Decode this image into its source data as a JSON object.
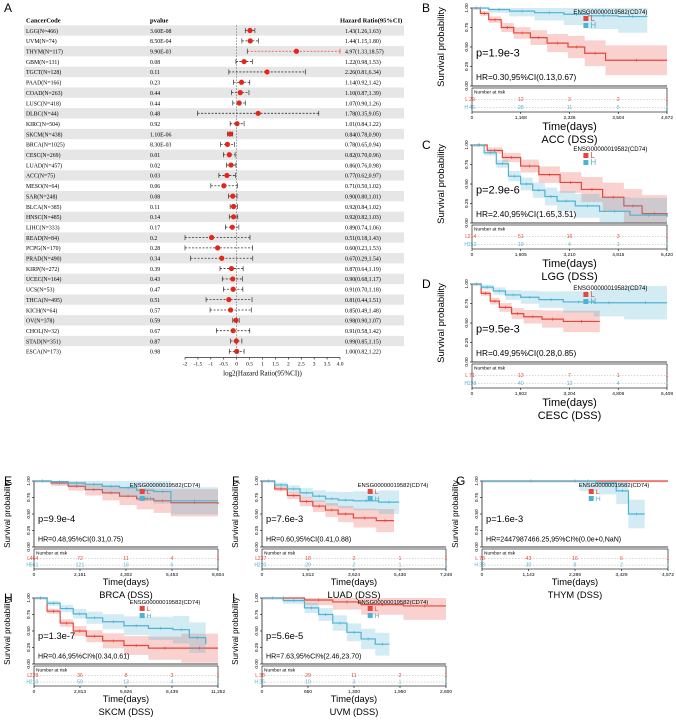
{
  "panel_letters": [
    "A",
    "B",
    "C",
    "D",
    "E",
    "F",
    "G",
    "H",
    "I"
  ],
  "forest": {
    "headers": {
      "code": "CancerCode",
      "p": "pvalue",
      "hr": "Hazard Ratio(95%CI)"
    },
    "xlabel": "log2(Hazard Ratio(95%CI))",
    "ticks": [
      -2,
      -1.5,
      -1,
      -0.5,
      0,
      0.5,
      1,
      1.5,
      2,
      2.5,
      3,
      3.5,
      4
    ],
    "tick_labels": [
      "-2",
      "-1.5",
      "-1",
      "-0.5",
      "0",
      "0.5",
      "1",
      "1.5",
      "2",
      "2.5",
      "3",
      "3.5",
      "4.0"
    ],
    "rows": [
      {
        "code": "LGG(N=466)",
        "p": "3.60E-08",
        "hr_text": "1.43(1.26,1.63)",
        "hr": 1.43,
        "lo": 1.26,
        "hi": 1.63
      },
      {
        "code": "UVM(N=74)",
        "p": "8.50E-04",
        "hr_text": "1.44(1.15,1.80)",
        "hr": 1.44,
        "lo": 1.15,
        "hi": 1.8
      },
      {
        "code": "THYM(N=117)",
        "p": "9.90E-03",
        "hr_text": "4.97(1.33,18.57)",
        "hr": 4.97,
        "lo": 1.33,
        "hi": 18.57
      },
      {
        "code": "GBM(N=131)",
        "p": "0.08",
        "hr_text": "1.22(0.98,1.53)",
        "hr": 1.22,
        "lo": 0.98,
        "hi": 1.53
      },
      {
        "code": "TGCT(N=128)",
        "p": "0.11",
        "hr_text": "2.26(0.81,6.34)",
        "hr": 2.26,
        "lo": 0.81,
        "hi": 6.34
      },
      {
        "code": "PAAD(N=166)",
        "p": "0.23",
        "hr_text": "1.14(0.92,1.42)",
        "hr": 1.14,
        "lo": 0.92,
        "hi": 1.42
      },
      {
        "code": "COAD(N=263)",
        "p": "0.44",
        "hr_text": "1.10(0.87,1.39)",
        "hr": 1.1,
        "lo": 0.87,
        "hi": 1.39
      },
      {
        "code": "LUSC(N=418)",
        "p": "0.44",
        "hr_text": "1.07(0.90,1.26)",
        "hr": 1.07,
        "lo": 0.9,
        "hi": 1.26
      },
      {
        "code": "DLBC(N=44)",
        "p": "0.48",
        "hr_text": "1.78(0.35,9.05)",
        "hr": 1.78,
        "lo": 0.35,
        "hi": 9.05
      },
      {
        "code": "KIRC(N=504)",
        "p": "0.92",
        "hr_text": "1.01(0.84,1.22)",
        "hr": 1.01,
        "lo": 0.84,
        "hi": 1.22
      },
      {
        "code": "SKCM(N=438)",
        "p": "1.10E-06",
        "hr_text": "0.84(0.78,0.90)",
        "hr": 0.84,
        "lo": 0.78,
        "hi": 0.9
      },
      {
        "code": "BRCA(N=1025)",
        "p": "8.30E-03",
        "hr_text": "0.78(0.65,0.94)",
        "hr": 0.78,
        "lo": 0.65,
        "hi": 0.94
      },
      {
        "code": "CESC(N=269)",
        "p": "0.01",
        "hr_text": "0.82(0.70,0.96)",
        "hr": 0.82,
        "lo": 0.7,
        "hi": 0.96
      },
      {
        "code": "LUAD(N=457)",
        "p": "0.02",
        "hr_text": "0.86(0.76,0.98)",
        "hr": 0.86,
        "lo": 0.76,
        "hi": 0.98
      },
      {
        "code": "ACC(N=75)",
        "p": "0.03",
        "hr_text": "0.77(0.62,0.97)",
        "hr": 0.77,
        "lo": 0.62,
        "hi": 0.97
      },
      {
        "code": "MESO(N=64)",
        "p": "0.06",
        "hr_text": "0.71(0.50,1.02)",
        "hr": 0.71,
        "lo": 0.5,
        "hi": 1.02
      },
      {
        "code": "SAR(N=248)",
        "p": "0.08",
        "hr_text": "0.90(0.80,1.01)",
        "hr": 0.9,
        "lo": 0.8,
        "hi": 1.01
      },
      {
        "code": "BLCA(N=385)",
        "p": "0.11",
        "hr_text": "0.92(0.84,1.02)",
        "hr": 0.92,
        "lo": 0.84,
        "hi": 1.02
      },
      {
        "code": "HNSC(N=485)",
        "p": "0.14",
        "hr_text": "0.92(0.82,1.03)",
        "hr": 0.92,
        "lo": 0.82,
        "hi": 1.03
      },
      {
        "code": "LIHC(N=333)",
        "p": "0.17",
        "hr_text": "0.89(0.74,1.06)",
        "hr": 0.89,
        "lo": 0.74,
        "hi": 1.06
      },
      {
        "code": "READ(N=84)",
        "p": "0.2",
        "hr_text": "0.51(0.18,1.43)",
        "hr": 0.51,
        "lo": 0.18,
        "hi": 1.43
      },
      {
        "code": "PCPG(N=170)",
        "p": "0.28",
        "hr_text": "0.60(0.23,1.53)",
        "hr": 0.6,
        "lo": 0.23,
        "hi": 1.53
      },
      {
        "code": "PRAD(N=490)",
        "p": "0.34",
        "hr_text": "0.67(0.29,1.54)",
        "hr": 0.67,
        "lo": 0.29,
        "hi": 1.54
      },
      {
        "code": "KIRP(N=272)",
        "p": "0.39",
        "hr_text": "0.87(0.64,1.19)",
        "hr": 0.87,
        "lo": 0.64,
        "hi": 1.19
      },
      {
        "code": "UCEC(N=164)",
        "p": "0.43",
        "hr_text": "0.90(0.68,1.17)",
        "hr": 0.9,
        "lo": 0.68,
        "hi": 1.17
      },
      {
        "code": "UCS(N=53)",
        "p": "0.47",
        "hr_text": "0.91(0.70,1.18)",
        "hr": 0.91,
        "lo": 0.7,
        "hi": 1.18
      },
      {
        "code": "THCA(N=495)",
        "p": "0.51",
        "hr_text": "0.81(0.44,1.51)",
        "hr": 0.81,
        "lo": 0.44,
        "hi": 1.51
      },
      {
        "code": "KICH(N=64)",
        "p": "0.57",
        "hr_text": "0.85(0.49,1.48)",
        "hr": 0.85,
        "lo": 0.49,
        "hi": 1.48
      },
      {
        "code": "OV(N=378)",
        "p": "0.59",
        "hr_text": "0.98(0.90,1.07)",
        "hr": 0.98,
        "lo": 0.9,
        "hi": 1.07
      },
      {
        "code": "CHOL(N=32)",
        "p": "0.67",
        "hr_text": "0.91(0.58,1.42)",
        "hr": 0.91,
        "lo": 0.58,
        "hi": 1.42
      },
      {
        "code": "STAD(N=351)",
        "p": "0.87",
        "hr_text": "0.99(0.85,1.15)",
        "hr": 0.99,
        "lo": 0.85,
        "hi": 1.15
      },
      {
        "code": "ESCA(N=173)",
        "p": "0.98",
        "hr_text": "1.00(0.82,1.22)",
        "hr": 1.0,
        "lo": 0.82,
        "hi": 1.22
      }
    ]
  },
  "km_common": {
    "gene_label": "ENSG00000019582(CD74)",
    "legend": [
      "L",
      "H"
    ],
    "ylabel": "Survival probability",
    "yticks": [
      "0.00",
      "0.25",
      "0.50",
      "0.75",
      "1.00"
    ],
    "risk_title": "Number at risk",
    "risk_groups": [
      "L",
      "H"
    ],
    "xlabel": "Time(days)",
    "colors": {
      "L": "#e8463a",
      "H": "#4eb3d3"
    }
  },
  "km_panels": [
    {
      "letter": "B",
      "cancer": "ACC (DSS)",
      "p": "p=1.9e-3",
      "hr": "HR=0.30,95%CI(0.13,0.67)",
      "xticks": [
        "0",
        "1,168",
        "2,336",
        "3,504",
        "4,672"
      ],
      "risk_L": [
        "29",
        "12",
        "3",
        "2",
        "1"
      ],
      "risk_H": [
        "46",
        "28",
        "11",
        "5",
        "1"
      ],
      "L": [
        [
          0,
          1
        ],
        [
          200,
          0.93
        ],
        [
          400,
          0.85
        ],
        [
          700,
          0.75
        ],
        [
          1000,
          0.68
        ],
        [
          1400,
          0.62
        ],
        [
          1800,
          0.55
        ],
        [
          2300,
          0.5
        ],
        [
          2700,
          0.42
        ],
        [
          3200,
          0.33
        ],
        [
          4672,
          0.33
        ]
      ],
      "H": [
        [
          0,
          1
        ],
        [
          400,
          0.98
        ],
        [
          900,
          0.96
        ],
        [
          1500,
          0.94
        ],
        [
          2200,
          0.92
        ],
        [
          2800,
          0.9
        ],
        [
          3500,
          0.89
        ],
        [
          4200,
          0.89
        ]
      ]
    },
    {
      "letter": "C",
      "cancer": "LGG (DSS)",
      "p": "p=2.9e-6",
      "hr": "HR=2.40,95%CI(1.65,3.51)",
      "xticks": [
        "0",
        "1,605",
        "3,210",
        "4,815",
        "6,420"
      ],
      "risk_L": [
        "214",
        "51",
        "16",
        "3",
        "1"
      ],
      "risk_H": [
        "152",
        "19",
        "4",
        "1",
        "1"
      ],
      "L": [
        [
          0,
          1
        ],
        [
          500,
          0.93
        ],
        [
          1000,
          0.84
        ],
        [
          1600,
          0.73
        ],
        [
          2200,
          0.62
        ],
        [
          2900,
          0.52
        ],
        [
          3600,
          0.43
        ],
        [
          4300,
          0.33
        ],
        [
          5000,
          0.22
        ],
        [
          5600,
          0.12
        ],
        [
          6420,
          0.08
        ]
      ],
      "H": [
        [
          0,
          1
        ],
        [
          400,
          0.9
        ],
        [
          800,
          0.76
        ],
        [
          1200,
          0.6
        ],
        [
          1600,
          0.5
        ],
        [
          2000,
          0.42
        ],
        [
          2400,
          0.34
        ],
        [
          2800,
          0.28
        ],
        [
          3400,
          0.22
        ],
        [
          4200,
          0.15
        ],
        [
          5200,
          0.1
        ],
        [
          6420,
          0.08
        ]
      ]
    },
    {
      "letter": "D",
      "cancer": "CESC (DSS)",
      "p": "p=9.5e-3",
      "hr": "HR=0.49,95%CI(0.28,0.85)",
      "xticks": [
        "0",
        "1,602",
        "3,204",
        "4,806",
        "6,408"
      ],
      "risk_L": [
        "71",
        "13",
        "7",
        "1",
        "1"
      ],
      "risk_H": [
        "198",
        "40",
        "12",
        "4",
        "1"
      ],
      "L": [
        [
          0,
          1
        ],
        [
          300,
          0.88
        ],
        [
          600,
          0.78
        ],
        [
          900,
          0.7
        ],
        [
          1300,
          0.62
        ],
        [
          1700,
          0.58
        ],
        [
          2300,
          0.55
        ],
        [
          3000,
          0.52
        ],
        [
          4200,
          0.52
        ]
      ],
      "H": [
        [
          0,
          1
        ],
        [
          300,
          0.96
        ],
        [
          700,
          0.91
        ],
        [
          1100,
          0.86
        ],
        [
          1600,
          0.83
        ],
        [
          2200,
          0.8
        ],
        [
          3000,
          0.77
        ],
        [
          4000,
          0.76
        ],
        [
          5000,
          0.76
        ],
        [
          6408,
          0.76
        ]
      ]
    },
    {
      "letter": "E",
      "cancer": "BRCA (DSS)",
      "p": "p=9.9e-4",
      "hr": "HR=0.48,95%CI(0.31,0.75)",
      "xticks": [
        "0",
        "2,151",
        "4,302",
        "6,453",
        "8,604"
      ],
      "risk_L": [
        "464",
        "72",
        "11",
        "4",
        "1"
      ],
      "risk_H": [
        "561",
        "121",
        "16",
        "6",
        "1"
      ],
      "L": [
        [
          0,
          1
        ],
        [
          800,
          0.97
        ],
        [
          1600,
          0.92
        ],
        [
          2400,
          0.87
        ],
        [
          3200,
          0.82
        ],
        [
          4000,
          0.77
        ],
        [
          4800,
          0.73
        ],
        [
          5600,
          0.7
        ],
        [
          6400,
          0.67
        ],
        [
          8604,
          0.65
        ]
      ],
      "H": [
        [
          0,
          1
        ],
        [
          800,
          0.99
        ],
        [
          1600,
          0.97
        ],
        [
          2400,
          0.95
        ],
        [
          3200,
          0.92
        ],
        [
          4000,
          0.9
        ],
        [
          4800,
          0.86
        ],
        [
          5600,
          0.84
        ],
        [
          6400,
          0.7
        ],
        [
          8604,
          0.7
        ]
      ]
    },
    {
      "letter": "F",
      "cancer": "LUAD (DSS)",
      "p": "p=7.6e-3",
      "hr": "HR=0.60,95%CI(0.41,0.88)",
      "xticks": [
        "0",
        "1,812",
        "3,624",
        "5,436",
        "7,248"
      ],
      "risk_L": [
        "237",
        "18",
        "2",
        "1",
        "1"
      ],
      "risk_H": [
        "220",
        "29",
        "2",
        "1",
        "1"
      ],
      "L": [
        [
          0,
          1
        ],
        [
          500,
          0.88
        ],
        [
          1000,
          0.78
        ],
        [
          1500,
          0.69
        ],
        [
          2000,
          0.62
        ],
        [
          2500,
          0.56
        ],
        [
          3000,
          0.5
        ],
        [
          3600,
          0.44
        ],
        [
          4500,
          0.4
        ],
        [
          5200,
          0.4
        ]
      ],
      "H": [
        [
          0,
          1
        ],
        [
          500,
          0.94
        ],
        [
          1000,
          0.88
        ],
        [
          1500,
          0.82
        ],
        [
          2000,
          0.77
        ],
        [
          2500,
          0.73
        ],
        [
          3000,
          0.71
        ],
        [
          3600,
          0.7
        ],
        [
          4600,
          0.68
        ],
        [
          5400,
          0.68
        ]
      ]
    },
    {
      "letter": "G",
      "cancer": "THYM (DSS)",
      "p": "p=1.6e-3",
      "hr": "HR=2447987466.25,95%CI%(0.0e+0,NaN)",
      "xticks": [
        "0",
        "1,143",
        "2,286",
        "3,429",
        "4,572"
      ],
      "risk_L": [
        "78",
        "43",
        "16",
        "6",
        "1"
      ],
      "risk_H": [
        "38",
        "30",
        "8",
        "2",
        "1"
      ],
      "L": [
        [
          0,
          1
        ],
        [
          4572,
          1
        ]
      ],
      "H": [
        [
          0,
          1
        ],
        [
          2400,
          1
        ],
        [
          2800,
          0.97
        ],
        [
          3300,
          0.85
        ],
        [
          3600,
          0.5
        ],
        [
          4000,
          0.5
        ]
      ]
    },
    {
      "letter": "H",
      "cancer": "SKCM (DSS)",
      "p": "p=1.3e-7",
      "hr": "HR=0.46,95%CI%(0.34,0.61)",
      "xticks": [
        "0",
        "2,813",
        "5,626",
        "8,439",
        "11,252"
      ],
      "risk_L": [
        "228",
        "36",
        "8",
        "3",
        "1"
      ],
      "risk_H": [
        "210",
        "59",
        "13",
        "4",
        "1"
      ],
      "L": [
        [
          0,
          1
        ],
        [
          800,
          0.8
        ],
        [
          1600,
          0.62
        ],
        [
          2400,
          0.5
        ],
        [
          3200,
          0.42
        ],
        [
          4200,
          0.35
        ],
        [
          5500,
          0.28
        ],
        [
          7000,
          0.24
        ],
        [
          9000,
          0.24
        ],
        [
          11252,
          0.24
        ]
      ],
      "H": [
        [
          0,
          1
        ],
        [
          800,
          0.92
        ],
        [
          1600,
          0.84
        ],
        [
          2400,
          0.76
        ],
        [
          3200,
          0.7
        ],
        [
          4200,
          0.64
        ],
        [
          5500,
          0.58
        ],
        [
          7000,
          0.54
        ],
        [
          8500,
          0.52
        ],
        [
          9500,
          0.4
        ],
        [
          10500,
          0.3
        ]
      ]
    },
    {
      "letter": "I",
      "cancer": "UVM (DSS)",
      "p": "p=5.6e-5",
      "hr": "HR=7.63,95%CI%(2.46,23.70)",
      "xticks": [
        "0",
        "650",
        "1,300",
        "1,950",
        "2,600"
      ],
      "risk_L": [
        "38",
        "29",
        "11",
        "2",
        "1"
      ],
      "risk_H": [
        "36",
        "19",
        "3",
        "1",
        "1"
      ],
      "L": [
        [
          0,
          1
        ],
        [
          600,
          0.97
        ],
        [
          1000,
          0.94
        ],
        [
          1400,
          0.9
        ],
        [
          2000,
          0.88
        ],
        [
          2600,
          0.88
        ]
      ],
      "H": [
        [
          0,
          1
        ],
        [
          300,
          0.96
        ],
        [
          600,
          0.85
        ],
        [
          800,
          0.75
        ],
        [
          1000,
          0.62
        ],
        [
          1200,
          0.48
        ],
        [
          1400,
          0.38
        ],
        [
          1600,
          0.3
        ],
        [
          1800,
          0.3
        ]
      ]
    }
  ]
}
